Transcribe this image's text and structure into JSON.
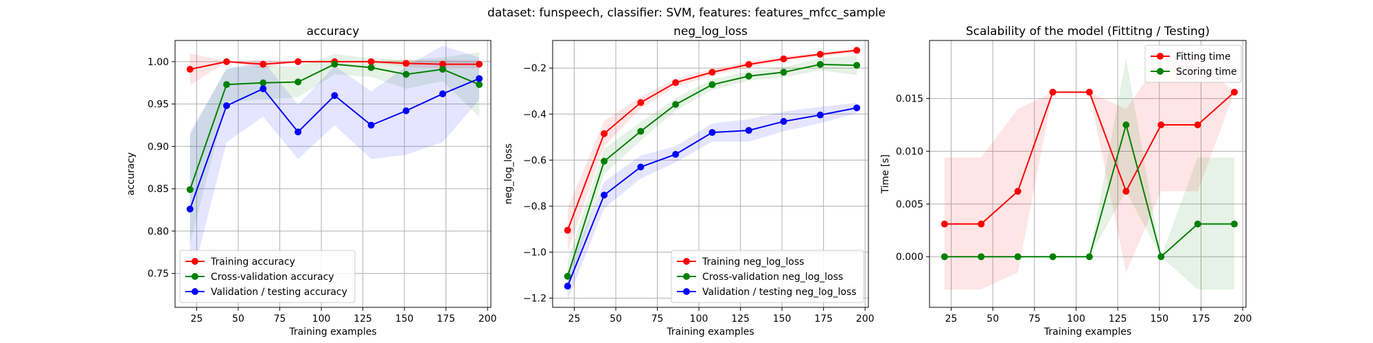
{
  "suptitle": "dataset: funspeech, classifier: SVM, features: features_mfcc_sample",
  "chart_data": [
    {
      "type": "line",
      "title": "accuracy",
      "xlabel": "Training examples",
      "ylabel": "accuracy",
      "xlim": [
        12,
        202
      ],
      "ylim": [
        0.71,
        1.025
      ],
      "xticks": [
        25,
        50,
        75,
        100,
        125,
        150,
        175,
        200
      ],
      "yticks": [
        0.75,
        0.8,
        0.85,
        0.9,
        0.95,
        1.0
      ],
      "ytick_decimals": 2,
      "grid": true,
      "legend_position": "lower-left",
      "x": [
        21,
        43,
        65,
        86,
        108,
        130,
        151,
        173,
        195
      ],
      "series": [
        {
          "name": "Training accuracy",
          "color": "#ff0000",
          "values": [
            0.991,
            1.0,
            0.997,
            1.0,
            1.0,
            1.0,
            0.998,
            0.997,
            0.997
          ],
          "band_low": [
            0.972,
            1.0,
            0.992,
            1.0,
            1.0,
            0.999,
            0.994,
            0.992,
            0.992
          ],
          "band_high": [
            1.01,
            1.0,
            1.002,
            1.0,
            1.0,
            1.001,
            1.002,
            1.002,
            1.002
          ]
        },
        {
          "name": "Cross-validation accuracy",
          "color": "#008000",
          "values": [
            0.849,
            0.973,
            0.975,
            0.976,
            0.997,
            0.993,
            0.985,
            0.991,
            0.973
          ],
          "band_low": [
            0.785,
            0.953,
            0.955,
            0.958,
            0.985,
            0.982,
            0.968,
            0.977,
            0.935
          ],
          "band_high": [
            0.913,
            0.993,
            0.995,
            0.994,
            1.009,
            1.004,
            1.002,
            1.005,
            1.011
          ]
        },
        {
          "name": "Validation / testing accuracy",
          "color": "#0000ff",
          "values": [
            0.826,
            0.948,
            0.968,
            0.917,
            0.96,
            0.925,
            0.942,
            0.962,
            0.98
          ],
          "band_low": [
            0.735,
            0.905,
            0.935,
            0.885,
            0.925,
            0.885,
            0.89,
            0.905,
            0.955
          ],
          "band_high": [
            0.917,
            0.991,
            1.001,
            0.949,
            0.995,
            0.965,
            0.994,
            1.019,
            1.005
          ]
        }
      ]
    },
    {
      "type": "line",
      "title": "neg_log_loss",
      "xlabel": "Training examples",
      "ylabel": "neg_log_loss",
      "xlim": [
        12,
        202
      ],
      "ylim": [
        -1.24,
        -0.08
      ],
      "xticks": [
        25,
        50,
        75,
        100,
        125,
        150,
        175,
        200
      ],
      "yticks": [
        -1.2,
        -1.0,
        -0.8,
        -0.6,
        -0.4,
        -0.2
      ],
      "ytick_decimals": 1,
      "grid": true,
      "legend_position": "lower-right",
      "x": [
        21,
        43,
        65,
        86,
        108,
        130,
        151,
        173,
        195
      ],
      "series": [
        {
          "name": "Training neg_log_loss",
          "color": "#ff0000",
          "values": [
            -0.905,
            -0.485,
            -0.35,
            -0.263,
            -0.218,
            -0.184,
            -0.16,
            -0.14,
            -0.123
          ],
          "band_low": [
            -1.0,
            -0.54,
            -0.375,
            -0.28,
            -0.232,
            -0.196,
            -0.17,
            -0.15,
            -0.132
          ],
          "band_high": [
            -0.81,
            -0.43,
            -0.325,
            -0.246,
            -0.204,
            -0.172,
            -0.15,
            -0.13,
            -0.114
          ]
        },
        {
          "name": "Cross-validation neg_log_loss",
          "color": "#008000",
          "values": [
            -1.105,
            -0.605,
            -0.475,
            -0.358,
            -0.272,
            -0.235,
            -0.218,
            -0.184,
            -0.188
          ],
          "band_low": [
            -1.17,
            -0.66,
            -0.515,
            -0.385,
            -0.295,
            -0.255,
            -0.24,
            -0.21,
            -0.23
          ],
          "band_high": [
            -1.04,
            -0.55,
            -0.435,
            -0.331,
            -0.249,
            -0.215,
            -0.196,
            -0.158,
            -0.146
          ]
        },
        {
          "name": "Validation / testing neg_log_loss",
          "color": "#0000ff",
          "values": [
            -1.148,
            -0.752,
            -0.63,
            -0.575,
            -0.48,
            -0.471,
            -0.432,
            -0.404,
            -0.373
          ],
          "band_low": [
            -1.21,
            -0.81,
            -0.68,
            -0.61,
            -0.52,
            -0.52,
            -0.475,
            -0.44,
            -0.395
          ],
          "band_high": [
            -1.086,
            -0.694,
            -0.58,
            -0.54,
            -0.44,
            -0.422,
            -0.389,
            -0.368,
            -0.351
          ]
        }
      ]
    },
    {
      "type": "line",
      "title": "Scalability of the model (Fittitng / Testing)",
      "xlabel": "Training examples",
      "ylabel": "Time [s]",
      "xlim": [
        12,
        202
      ],
      "ylim": [
        -0.0048,
        0.0205
      ],
      "xticks": [
        25,
        50,
        75,
        100,
        125,
        150,
        175,
        200
      ],
      "yticks": [
        0.0,
        0.005,
        0.01,
        0.015
      ],
      "ytick_decimals": 3,
      "grid": true,
      "legend_position": "top-right",
      "x": [
        21,
        43,
        65,
        86,
        108,
        130,
        151,
        173,
        195
      ],
      "series": [
        {
          "name": "Fitting time",
          "color": "#ff0000",
          "values": [
            0.0031,
            0.0031,
            0.0062,
            0.0156,
            0.0156,
            0.0062,
            0.0125,
            0.0125,
            0.0156
          ],
          "band_low": [
            -0.0031,
            -0.0031,
            -0.0015,
            0.0156,
            0.0156,
            -0.0015,
            0.0062,
            0.0062,
            0.0156
          ],
          "band_high": [
            0.0094,
            0.0094,
            0.014,
            0.0156,
            0.0156,
            0.014,
            0.0188,
            0.0188,
            0.0156
          ]
        },
        {
          "name": "Scoring time",
          "color": "#008000",
          "values": [
            0.0,
            0.0,
            0.0,
            0.0,
            0.0,
            0.0125,
            0.0,
            0.0031,
            0.0031
          ],
          "band_low": [
            0.0,
            0.0,
            0.0,
            0.0,
            0.0,
            0.0062,
            0.0,
            -0.0031,
            -0.0031
          ],
          "band_high": [
            0.0,
            0.0,
            0.0,
            0.0,
            0.0,
            0.0188,
            0.0,
            0.0094,
            0.0094
          ]
        }
      ]
    }
  ]
}
